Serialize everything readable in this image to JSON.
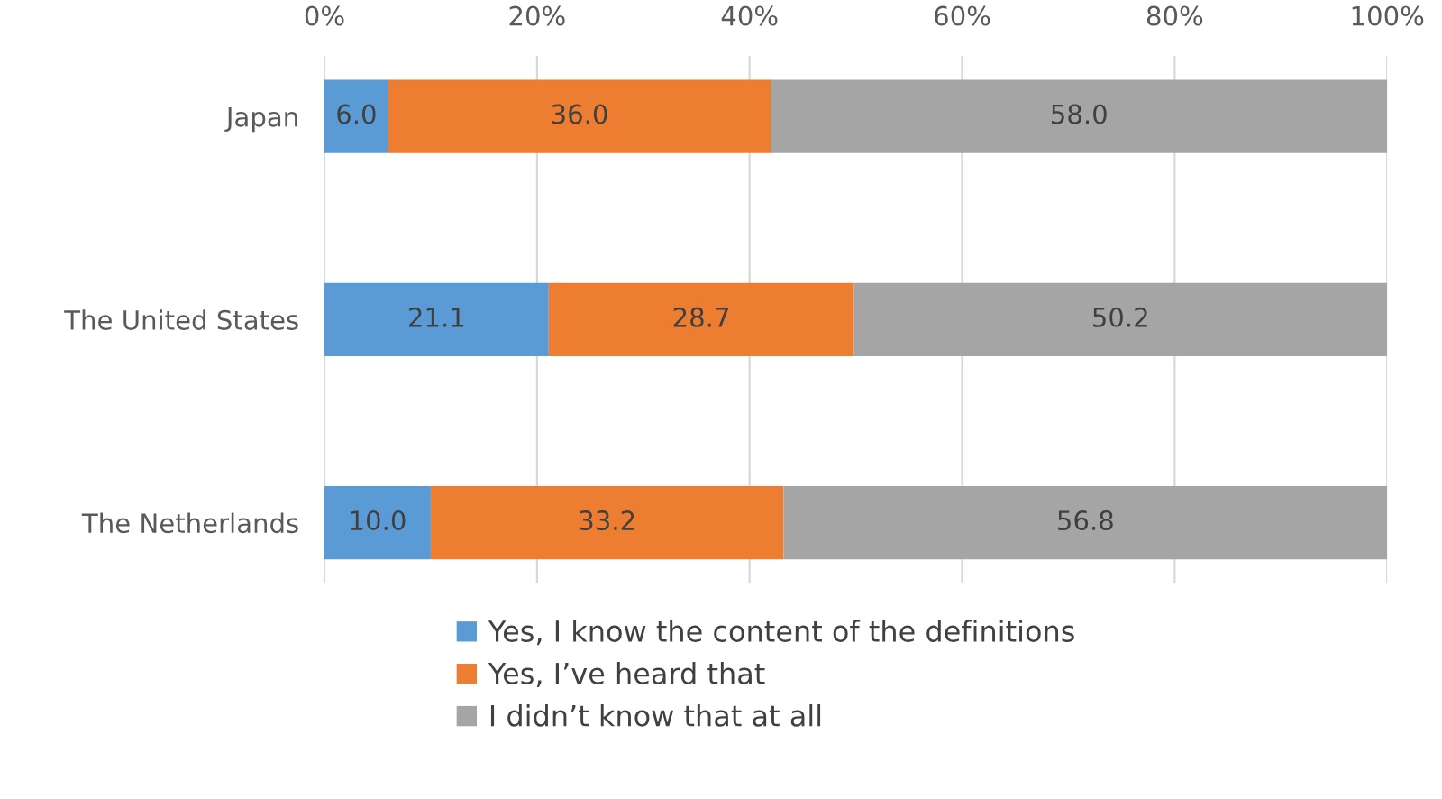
{
  "chart_data": {
    "type": "bar",
    "orientation": "horizontal",
    "stacked": true,
    "categories": [
      "Japan",
      "The United States",
      "The Netherlands"
    ],
    "series": [
      {
        "name": "Yes, I know the content of the definitions",
        "color": "#5b9bd5",
        "values": [
          6.0,
          21.1,
          10.0
        ],
        "value_labels": [
          "6.0",
          "21.1",
          "10.0"
        ]
      },
      {
        "name": "Yes, I’ve heard that",
        "color": "#ed7d31",
        "values": [
          36.0,
          28.7,
          33.2
        ],
        "value_labels": [
          "36.0",
          "28.7",
          "33.2"
        ]
      },
      {
        "name": "I didn’t know that at all",
        "color": "#a5a5a5",
        "values": [
          58.0,
          50.2,
          56.8
        ],
        "value_labels": [
          "58.0",
          "50.2",
          "56.8"
        ]
      }
    ],
    "xlim": [
      0,
      100
    ],
    "xticks": [
      {
        "value": 0,
        "label": "0%"
      },
      {
        "value": 20,
        "label": "20%"
      },
      {
        "value": 40,
        "label": "40%"
      },
      {
        "value": 60,
        "label": "60%"
      },
      {
        "value": 80,
        "label": "80%"
      },
      {
        "value": 100,
        "label": "100%"
      }
    ],
    "grid": "x",
    "legend": "bottom"
  }
}
